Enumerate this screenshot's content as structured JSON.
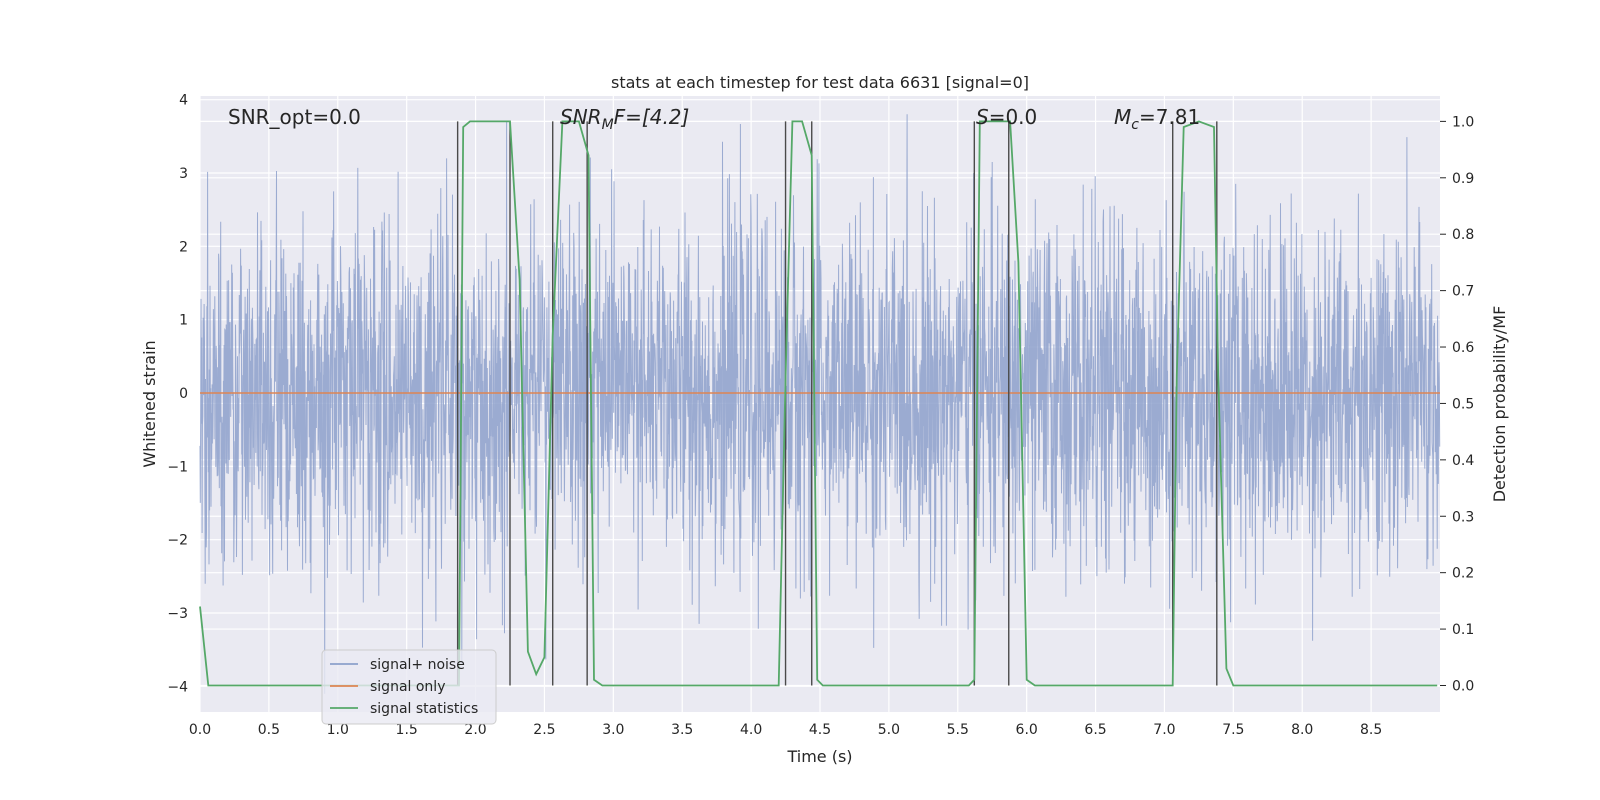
{
  "chart_data": {
    "type": "line",
    "title": "stats at each timestep for test data 6631 [signal=0]",
    "xlabel": "Time (s)",
    "ylabel": "Whitened strain",
    "y2label": "Detection probability/MF",
    "xlim": [
      0.0,
      9.0
    ],
    "ylim": [
      -4.35,
      4.05
    ],
    "y2lim": [
      -0.047,
      1.045
    ],
    "x_ticks": [
      "0.0",
      "0.5",
      "1.0",
      "1.5",
      "2.0",
      "2.5",
      "3.0",
      "3.5",
      "4.0",
      "4.5",
      "5.0",
      "5.5",
      "6.0",
      "6.5",
      "7.0",
      "7.5",
      "8.0",
      "8.5"
    ],
    "y_ticks": [
      "4",
      "3",
      "2",
      "1",
      "0",
      "−1",
      "−2",
      "−3",
      "−4"
    ],
    "y2_ticks": [
      "1.0",
      "0.9",
      "0.8",
      "0.7",
      "0.6",
      "0.5",
      "0.4",
      "0.3",
      "0.2",
      "0.1",
      "0.0"
    ],
    "grid": true,
    "legend_position": "lower-left",
    "annotations": {
      "snr_opt": "SNR_opt=0.0",
      "snr_mf_sym": "SNR",
      "snr_mf_sub": "M",
      "snr_mf_rest": "F=[4.2]",
      "s_sym": "S",
      "s_rest": "=0.0",
      "mc_sym": "M",
      "mc_sub": "c",
      "mc_rest": "=7.81"
    },
    "series": [
      {
        "name": "signal+ noise",
        "color": "#8da0cb",
        "noise_envelope": {
          "typical_sigma": 1.0,
          "min": -4.1,
          "max": 3.8
        }
      },
      {
        "name": "signal only",
        "color": "#dd8452",
        "values_constant": 0.0
      },
      {
        "name": "signal statistics",
        "color": "#55a868",
        "x": [
          0.0,
          0.06,
          0.12,
          1.85,
          1.88,
          1.91,
          1.96,
          2.0,
          2.25,
          2.32,
          2.38,
          2.44,
          2.5,
          2.56,
          2.63,
          2.75,
          2.82,
          2.86,
          2.92,
          4.2,
          4.25,
          4.3,
          4.37,
          4.44,
          4.48,
          4.52,
          4.6,
          5.58,
          5.62,
          5.66,
          5.8,
          5.88,
          5.94,
          6.0,
          6.06,
          7.06,
          7.09,
          7.14,
          7.25,
          7.36,
          7.39,
          7.45,
          7.5,
          8.98
        ],
        "values": [
          0.14,
          0.0,
          0.0,
          0.0,
          0.0,
          0.99,
          1.0,
          1.0,
          1.0,
          0.72,
          0.06,
          0.02,
          0.05,
          0.62,
          1.0,
          1.0,
          0.94,
          0.01,
          0.0,
          0.0,
          0.55,
          1.0,
          1.0,
          0.94,
          0.01,
          0.0,
          0.0,
          0.0,
          0.01,
          1.0,
          1.0,
          1.0,
          0.75,
          0.01,
          0.0,
          0.0,
          0.55,
          0.99,
          1.0,
          0.99,
          0.55,
          0.03,
          0.0,
          0.0
        ]
      }
    ],
    "vertical_markers_x": [
      1.87,
      2.25,
      2.56,
      2.81,
      4.25,
      4.44,
      5.62,
      5.87,
      7.06,
      7.38
    ]
  }
}
